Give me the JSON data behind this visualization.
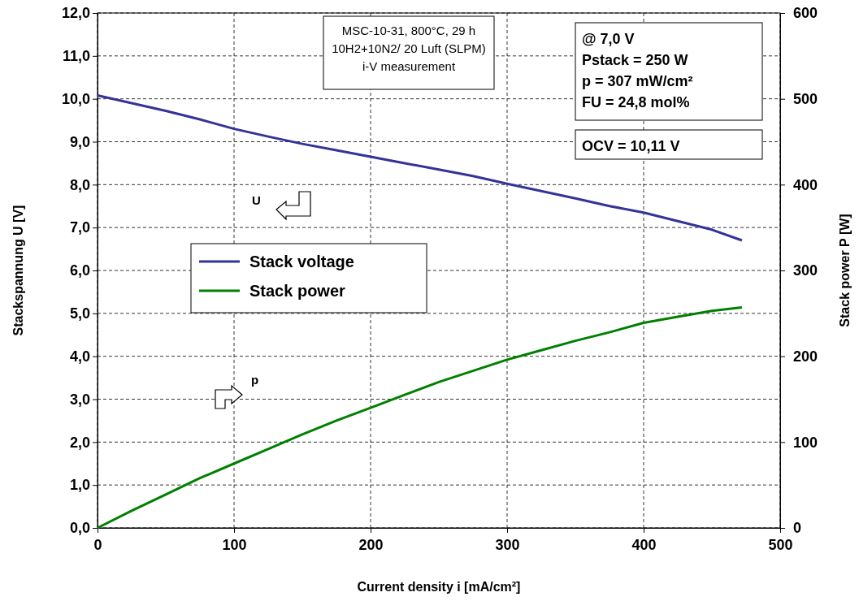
{
  "chart_data": {
    "type": "line",
    "xlabel": "Current density i [mA/cm²]",
    "ylabel": "Stackspannung U [V]",
    "y2label": "Stack power P [W]",
    "xlim": [
      0,
      500
    ],
    "xticks": [
      0,
      100,
      200,
      300,
      400,
      500
    ],
    "ylim": [
      0,
      12
    ],
    "yticks": [
      {
        "value": 0,
        "label": "0,0"
      },
      {
        "value": 1,
        "label": "1,0"
      },
      {
        "value": 2,
        "label": "2,0"
      },
      {
        "value": 3,
        "label": "3,0"
      },
      {
        "value": 4,
        "label": "4,0"
      },
      {
        "value": 5,
        "label": "5,0"
      },
      {
        "value": 6,
        "label": "6,0"
      },
      {
        "value": 7,
        "label": "7,0"
      },
      {
        "value": 8,
        "label": "8,0"
      },
      {
        "value": 9,
        "label": "9,0"
      },
      {
        "value": 10,
        "label": "10,0"
      },
      {
        "value": 11,
        "label": "11,0"
      },
      {
        "value": 12,
        "label": "12,0"
      }
    ],
    "y2lim": [
      0,
      600
    ],
    "y2ticks": [
      0,
      100,
      200,
      300,
      400,
      500,
      600
    ],
    "x": [
      0,
      25,
      50,
      75,
      100,
      125,
      150,
      175,
      200,
      225,
      250,
      275,
      300,
      325,
      350,
      375,
      400,
      425,
      450,
      472
    ],
    "series": [
      {
        "name": "Stack voltage",
        "color": "#333399",
        "values": [
          10.08,
          9.9,
          9.72,
          9.52,
          9.3,
          9.12,
          8.95,
          8.8,
          8.65,
          8.5,
          8.35,
          8.2,
          8.02,
          7.85,
          7.68,
          7.5,
          7.35,
          7.15,
          6.95,
          6.7
        ]
      },
      {
        "name": "Stack power",
        "color": "#008000",
        "axis": "y2",
        "values": [
          0,
          20,
          39,
          58,
          75,
          92,
          109,
          125,
          140,
          155,
          170,
          183,
          196,
          207,
          218,
          228,
          239,
          246,
          253,
          257
        ]
      }
    ],
    "annotations": [
      "MSC-10-31, 800°C, 29 h\n10H2+10N2/ 20 Luft (SLPM)\ni-V measurement",
      "@ 7,0 V\nPstack = 250 W\np = 307 mW/cm²\nFU = 24,8 mol%",
      "OCV = 10,11 V",
      "U",
      "p"
    ],
    "grid": true,
    "legend": "center left",
    "line_style": "solid",
    "marker": "none"
  }
}
